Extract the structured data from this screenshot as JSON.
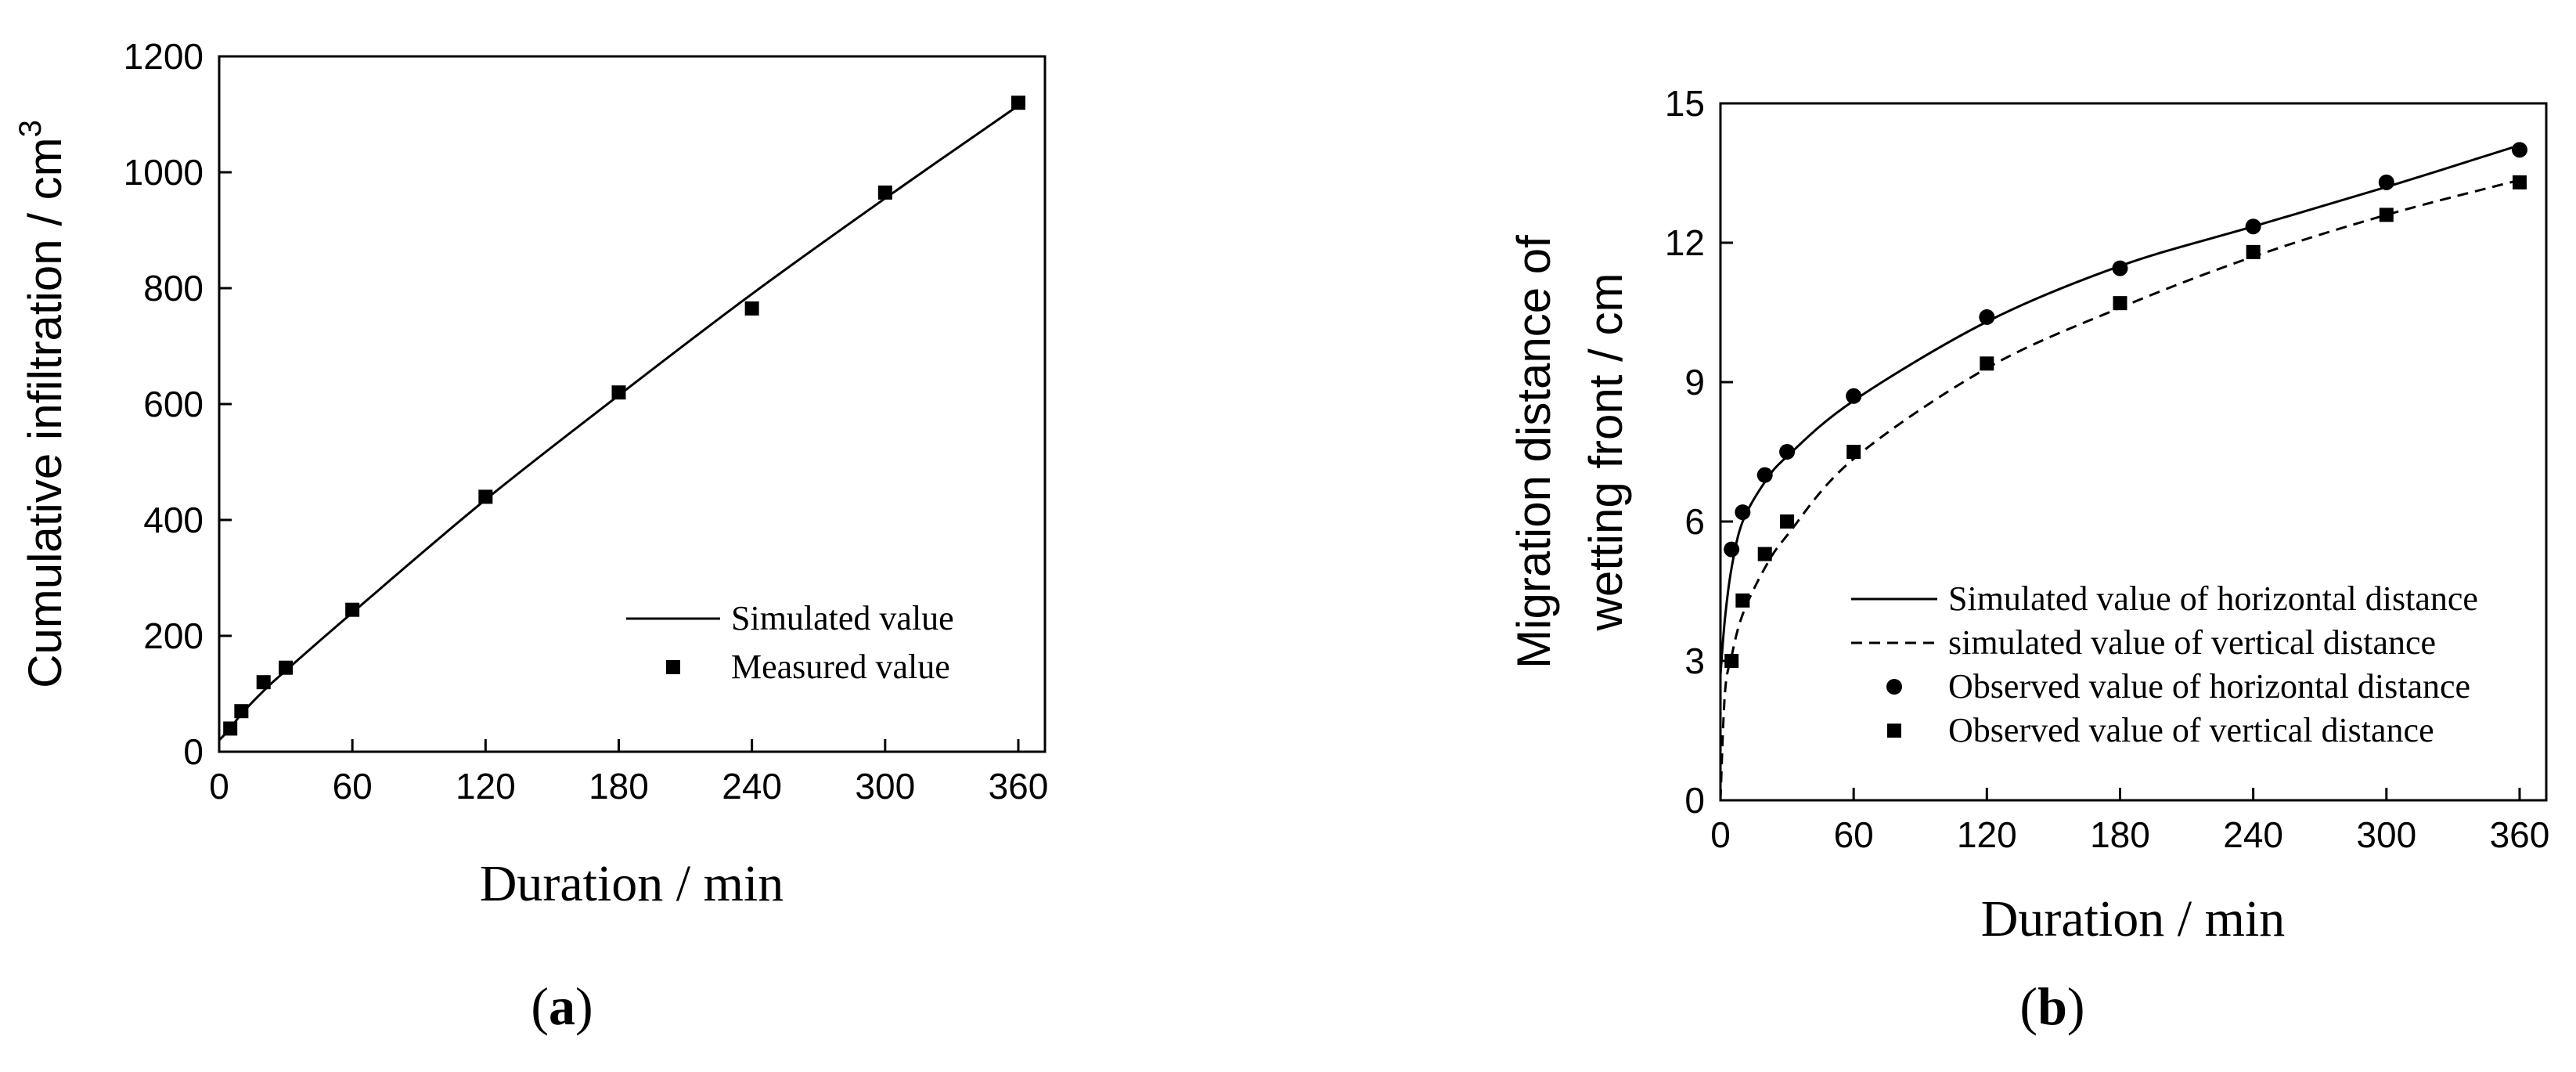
{
  "chart_data": [
    {
      "type": "scatter",
      "panel_label": "a",
      "xlabel": "Duration / min",
      "ylabel": "Cumulative infiltration / cm",
      "ylabel_sup": "3",
      "xlim": [
        0,
        372
      ],
      "ylim": [
        0,
        1200
      ],
      "xticks": [
        0,
        60,
        120,
        180,
        240,
        300,
        360
      ],
      "yticks": [
        0,
        200,
        400,
        600,
        800,
        1000,
        1200
      ],
      "legend_position": "bottom-right",
      "series": [
        {
          "name": "Simulated value",
          "style": "line",
          "x": [
            0,
            5,
            10,
            20,
            30,
            60,
            120,
            180,
            240,
            300,
            360
          ],
          "y": [
            20,
            40,
            65,
            105,
            140,
            240,
            435,
            615,
            790,
            955,
            1115
          ]
        },
        {
          "name": "Measured value",
          "style": "square",
          "x": [
            5,
            10,
            20,
            30,
            60,
            120,
            180,
            240,
            300,
            360
          ],
          "y": [
            40,
            70,
            120,
            145,
            245,
            440,
            620,
            765,
            965,
            1120
          ]
        }
      ]
    },
    {
      "type": "scatter",
      "panel_label": "b",
      "xlabel": "Duration / min",
      "ylabel_line1": "Migration distance of",
      "ylabel_line2": "wetting front / cm",
      "xlim": [
        0,
        372
      ],
      "ylim": [
        0,
        15
      ],
      "xticks": [
        0,
        60,
        120,
        180,
        240,
        300,
        360
      ],
      "yticks": [
        0,
        3,
        6,
        9,
        12,
        15
      ],
      "legend_position": "bottom-right",
      "series": [
        {
          "name": "Simulated value of horizontal distance",
          "style": "line",
          "x": [
            0,
            2,
            5,
            10,
            20,
            30,
            60,
            120,
            180,
            240,
            300,
            360
          ],
          "y": [
            2.7,
            3.9,
            5.0,
            6.0,
            6.85,
            7.4,
            8.6,
            10.3,
            11.5,
            12.35,
            13.2,
            14.1
          ]
        },
        {
          "name": "simulated value of vertical distance",
          "style": "dashed",
          "x": [
            0,
            2,
            5,
            10,
            20,
            30,
            60,
            120,
            180,
            240,
            300,
            360
          ],
          "y": [
            0,
            2.3,
            3.1,
            4.0,
            5.0,
            5.7,
            7.35,
            9.3,
            10.6,
            11.7,
            12.6,
            13.35
          ]
        },
        {
          "name": "Observed value of horizontal distance",
          "style": "circle",
          "x": [
            5,
            10,
            20,
            30,
            60,
            120,
            180,
            240,
            300,
            360
          ],
          "y": [
            5.4,
            6.2,
            7.0,
            7.5,
            8.7,
            10.4,
            11.45,
            12.35,
            13.3,
            14.0
          ]
        },
        {
          "name": "Observed value of vertical distance",
          "style": "square",
          "x": [
            5,
            10,
            20,
            30,
            60,
            120,
            180,
            240,
            300,
            360
          ],
          "y": [
            3.0,
            4.3,
            5.3,
            6.0,
            7.5,
            9.4,
            10.7,
            11.8,
            12.6,
            13.3
          ]
        }
      ]
    }
  ]
}
